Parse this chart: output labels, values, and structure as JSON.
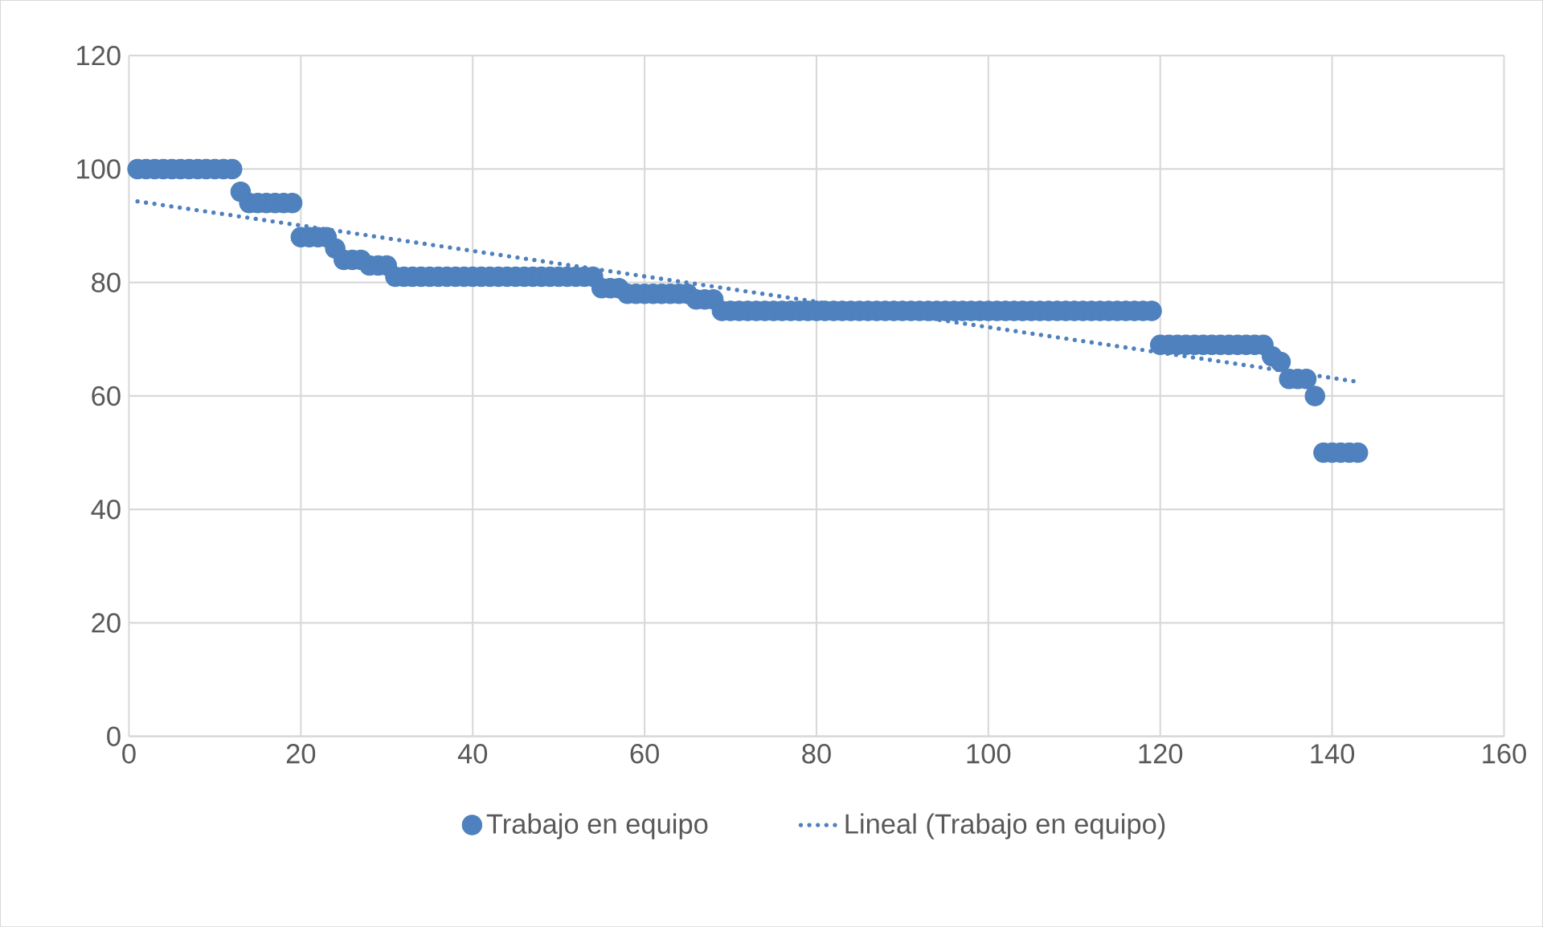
{
  "chart_data": {
    "type": "scatter",
    "xlim": [
      0,
      160
    ],
    "xticks": [
      0,
      20,
      40,
      60,
      80,
      100,
      120,
      140,
      160
    ],
    "ylim": [
      0,
      120
    ],
    "yticks": [
      0,
      20,
      40,
      60,
      80,
      100,
      120
    ],
    "grid": true,
    "legend": "bottom",
    "series": [
      {
        "name": "Trabajo en equipo",
        "marker": "circle",
        "color": "#4e81bd",
        "x": [
          1,
          2,
          3,
          4,
          5,
          6,
          7,
          8,
          9,
          10,
          11,
          12,
          13,
          14,
          15,
          16,
          17,
          18,
          19,
          20,
          21,
          22,
          23,
          24,
          25,
          26,
          27,
          28,
          29,
          30,
          31,
          32,
          33,
          34,
          35,
          36,
          37,
          38,
          39,
          40,
          41,
          42,
          43,
          44,
          45,
          46,
          47,
          48,
          49,
          50,
          51,
          52,
          53,
          54,
          55,
          56,
          57,
          58,
          59,
          60,
          61,
          62,
          63,
          64,
          65,
          66,
          67,
          68,
          69,
          70,
          71,
          72,
          73,
          74,
          75,
          76,
          77,
          78,
          79,
          80,
          81,
          82,
          83,
          84,
          85,
          86,
          87,
          88,
          89,
          90,
          91,
          92,
          93,
          94,
          95,
          96,
          97,
          98,
          99,
          100,
          101,
          102,
          103,
          104,
          105,
          106,
          107,
          108,
          109,
          110,
          111,
          112,
          113,
          114,
          115,
          116,
          117,
          118,
          119,
          120,
          121,
          122,
          123,
          124,
          125,
          126,
          127,
          128,
          129,
          130,
          131,
          132,
          133,
          134,
          135,
          136,
          137,
          138,
          139,
          140,
          141,
          142,
          143
        ],
        "values": [
          100,
          100,
          100,
          100,
          100,
          100,
          100,
          100,
          100,
          100,
          100,
          100,
          96,
          94,
          94,
          94,
          94,
          94,
          94,
          88,
          88,
          88,
          88,
          86,
          84,
          84,
          84,
          83,
          83,
          83,
          81,
          81,
          81,
          81,
          81,
          81,
          81,
          81,
          81,
          81,
          81,
          81,
          81,
          81,
          81,
          81,
          81,
          81,
          81,
          81,
          81,
          81,
          81,
          81,
          79,
          79,
          79,
          78,
          78,
          78,
          78,
          78,
          78,
          78,
          78,
          77,
          77,
          77,
          75,
          75,
          75,
          75,
          75,
          75,
          75,
          75,
          75,
          75,
          75,
          75,
          75,
          75,
          75,
          75,
          75,
          75,
          75,
          75,
          75,
          75,
          75,
          75,
          75,
          75,
          75,
          75,
          75,
          75,
          75,
          75,
          75,
          75,
          75,
          75,
          75,
          75,
          75,
          75,
          75,
          75,
          75,
          75,
          75,
          75,
          75,
          75,
          75,
          75,
          75,
          69,
          69,
          69,
          69,
          69,
          69,
          69,
          69,
          69,
          69,
          69,
          69,
          69,
          67,
          66,
          63,
          63,
          63,
          60,
          50,
          50,
          50,
          50,
          50
        ]
      },
      {
        "name": "Lineal (Trabajo en equipo)",
        "type": "line",
        "line_style": "dotted",
        "marker": "none",
        "color": "#4e81bd",
        "x": [
          1,
          143
        ],
        "values": [
          94.3,
          62.5
        ]
      }
    ]
  }
}
